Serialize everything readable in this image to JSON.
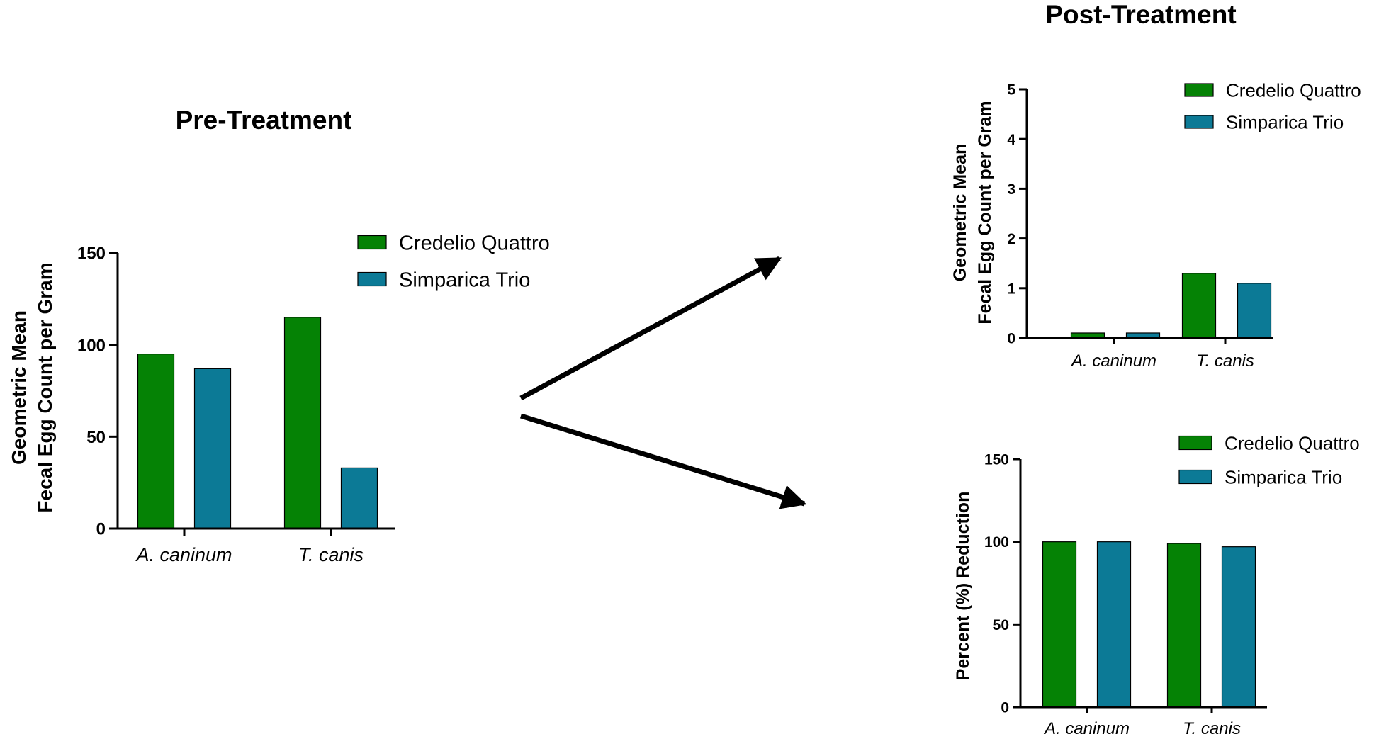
{
  "colors": {
    "credelio": "#058205",
    "simparica": "#0c7a96",
    "axis": "#000000"
  },
  "arrows": {
    "icon_upper": "arrow-up-right-icon",
    "icon_lower": "arrow-down-right-icon"
  },
  "chart_data": [
    {
      "id": "pre",
      "type": "bar",
      "title": "Pre-Treatment",
      "ylabel_lines": [
        "Geometric Mean",
        "Fecal Egg Count per Gram"
      ],
      "xlabel": "",
      "categories": [
        "A. caninum",
        "T. canis"
      ],
      "series": [
        {
          "name": "Credelio Quattro",
          "values": [
            95,
            115
          ]
        },
        {
          "name": "Simparica Trio",
          "values": [
            87,
            33
          ]
        }
      ],
      "ylim": [
        0,
        150
      ],
      "yticks": [
        "0",
        "50",
        "100",
        "150"
      ],
      "grid": false,
      "legend": "top-right"
    },
    {
      "id": "post",
      "type": "bar",
      "title": "Post-Treatment",
      "ylabel_lines": [
        "Geometric Mean",
        "Fecal Egg Count per Gram"
      ],
      "xlabel": "",
      "categories": [
        "A. caninum",
        "T. canis"
      ],
      "series": [
        {
          "name": "Credelio Quattro",
          "values": [
            0.1,
            1.3
          ]
        },
        {
          "name": "Simparica Trio",
          "values": [
            0.1,
            1.1
          ]
        }
      ],
      "ylim": [
        0,
        5
      ],
      "yticks": [
        "0",
        "1",
        "2",
        "3",
        "4",
        "5"
      ],
      "grid": false,
      "legend": "top-right"
    },
    {
      "id": "reduction",
      "type": "bar",
      "title": "",
      "ylabel_lines": [
        "Percent (%) Reduction"
      ],
      "xlabel": "",
      "categories": [
        "A. caninum",
        "T. canis"
      ],
      "series": [
        {
          "name": "Credelio Quattro",
          "values": [
            100,
            99
          ]
        },
        {
          "name": "Simparica Trio",
          "values": [
            100,
            97
          ]
        }
      ],
      "ylim": [
        0,
        150
      ],
      "yticks": [
        "0",
        "50",
        "100",
        "150"
      ],
      "grid": false,
      "legend": "top-right"
    }
  ]
}
